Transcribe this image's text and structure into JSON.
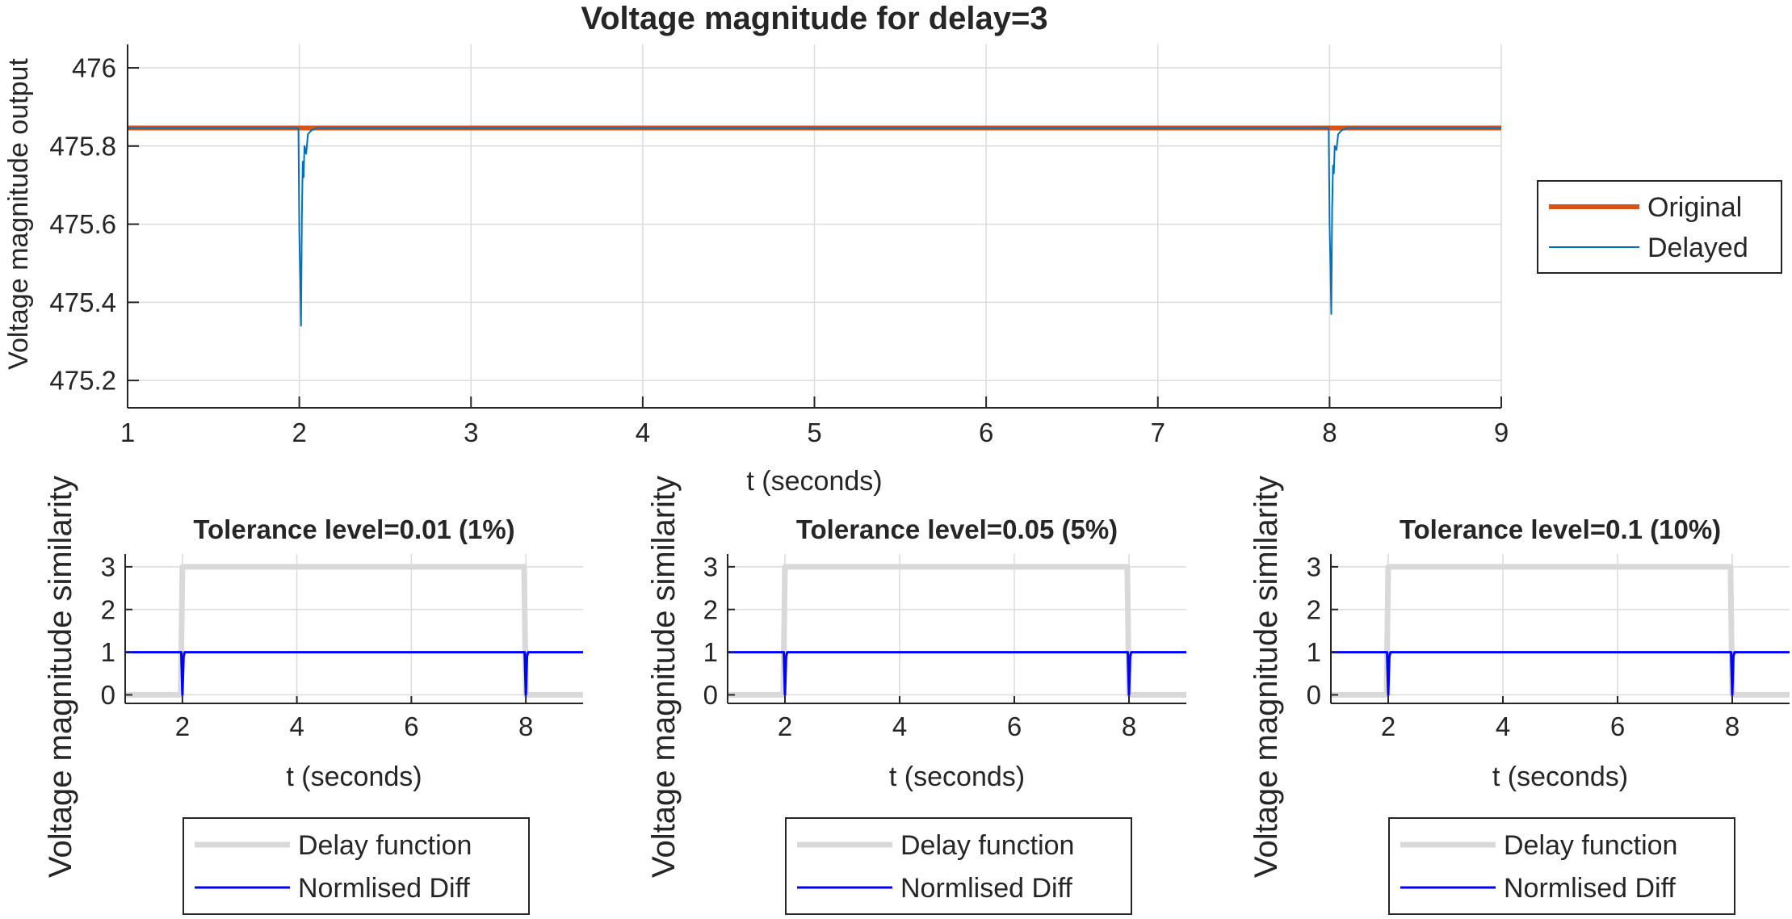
{
  "figure": {
    "colors": {
      "original": "#D95319",
      "delayed": "#0072BD",
      "delay_function": "#D9D9D9",
      "normlised_diff": "#0000FF",
      "grid": "#DCDCDC",
      "axis": "#262626"
    }
  },
  "chart_data": [
    {
      "id": "main",
      "type": "line",
      "title": "Voltage magnitude for delay=3",
      "xlabel": "t (seconds)",
      "ylabel": "Voltage magnitude output",
      "xlim": [
        1,
        9
      ],
      "ylim": [
        475.13,
        476.06
      ],
      "xticks": [
        1,
        2,
        3,
        4,
        5,
        6,
        7,
        8,
        9
      ],
      "yticks": [
        475.2,
        475.4,
        475.6,
        475.8,
        476
      ],
      "ytick_labels": [
        "475.2",
        "475.4",
        "475.6",
        "475.8",
        "476"
      ],
      "grid": true,
      "legend": {
        "placement": "right",
        "entries": [
          "Original",
          "Delayed"
        ]
      },
      "series": [
        {
          "name": "Original",
          "style": "original",
          "x": [
            1,
            2.0,
            2.06,
            8.0,
            8.06,
            9
          ],
          "y": [
            475.846,
            475.846,
            475.846,
            475.846,
            475.846,
            475.846
          ]
        },
        {
          "name": "Delayed",
          "style": "delayed",
          "x": [
            1,
            1.995,
            2.0,
            2.005,
            2.01,
            2.015,
            2.02,
            2.025,
            2.03,
            2.04,
            2.05,
            2.07,
            2.1,
            7.995,
            8.0,
            8.005,
            8.01,
            8.015,
            8.02,
            8.025,
            8.03,
            8.04,
            8.05,
            8.07,
            8.1,
            9
          ],
          "y": [
            475.846,
            475.846,
            475.58,
            475.47,
            475.34,
            475.62,
            475.76,
            475.72,
            475.8,
            475.78,
            475.83,
            475.84,
            475.846,
            475.846,
            475.6,
            475.5,
            475.37,
            475.64,
            475.75,
            475.73,
            475.8,
            475.79,
            475.83,
            475.84,
            475.846,
            475.846
          ]
        }
      ]
    },
    {
      "id": "tol1",
      "type": "line",
      "title": "Tolerance level=0.01 (1%)",
      "xlabel": "t (seconds)",
      "ylabel": "Voltage magnitude similarity",
      "xlim": [
        1,
        9
      ],
      "ylim": [
        -0.2,
        3.3
      ],
      "xticks": [
        2,
        4,
        6,
        8
      ],
      "yticks": [
        0,
        1,
        2,
        3
      ],
      "ytick_labels": [
        "0",
        "1",
        "2",
        "3"
      ],
      "grid": true,
      "legend": {
        "placement": "below",
        "entries": [
          "Delay function",
          "Normlised Diff"
        ]
      },
      "series": [
        {
          "name": "Delay function",
          "style": "delay_function",
          "x": [
            1,
            1.97,
            2.0,
            7.97,
            8.0,
            9
          ],
          "y": [
            0,
            0,
            3,
            3,
            0,
            0
          ]
        },
        {
          "name": "Normlised Diff",
          "style": "normlised_diff",
          "x": [
            1,
            1.98,
            2.0,
            2.02,
            2.04,
            7.98,
            8.0,
            8.02,
            8.04,
            9
          ],
          "y": [
            1,
            1,
            0,
            0.9,
            1,
            1,
            0,
            0.9,
            1,
            1
          ]
        }
      ]
    },
    {
      "id": "tol5",
      "type": "line",
      "title": "Tolerance level=0.05 (5%)",
      "xlabel": "t (seconds)",
      "ylabel": "Voltage magnitude similarity",
      "xlim": [
        1,
        9
      ],
      "ylim": [
        -0.2,
        3.3
      ],
      "xticks": [
        2,
        4,
        6,
        8
      ],
      "yticks": [
        0,
        1,
        2,
        3
      ],
      "ytick_labels": [
        "0",
        "1",
        "2",
        "3"
      ],
      "grid": true,
      "legend": {
        "placement": "below",
        "entries": [
          "Delay function",
          "Normlised Diff"
        ]
      },
      "series": [
        {
          "name": "Delay function",
          "style": "delay_function",
          "x": [
            1,
            1.97,
            2.0,
            7.97,
            8.0,
            9
          ],
          "y": [
            0,
            0,
            3,
            3,
            0,
            0
          ]
        },
        {
          "name": "Normlised Diff",
          "style": "normlised_diff",
          "x": [
            1,
            1.98,
            2.0,
            2.02,
            2.04,
            7.98,
            8.0,
            8.02,
            8.04,
            9
          ],
          "y": [
            1,
            1,
            0,
            0.9,
            1,
            1,
            0,
            0.9,
            1,
            1
          ]
        }
      ]
    },
    {
      "id": "tol10",
      "type": "line",
      "title": "Tolerance level=0.1 (10%)",
      "xlabel": "t (seconds)",
      "ylabel": "Voltage magnitude similarity",
      "xlim": [
        1,
        9
      ],
      "ylim": [
        -0.2,
        3.3
      ],
      "xticks": [
        2,
        4,
        6,
        8
      ],
      "yticks": [
        0,
        1,
        2,
        3
      ],
      "ytick_labels": [
        "0",
        "1",
        "2",
        "3"
      ],
      "grid": true,
      "legend": {
        "placement": "below",
        "entries": [
          "Delay function",
          "Normlised Diff"
        ]
      },
      "series": [
        {
          "name": "Delay function",
          "style": "delay_function",
          "x": [
            1,
            1.97,
            2.0,
            7.97,
            8.0,
            9
          ],
          "y": [
            0,
            0,
            3,
            3,
            0,
            0
          ]
        },
        {
          "name": "Normlised Diff",
          "style": "normlised_diff",
          "x": [
            1,
            1.98,
            2.0,
            2.02,
            2.04,
            7.98,
            8.0,
            8.02,
            8.04,
            9
          ],
          "y": [
            1,
            1,
            0,
            0.9,
            1,
            1,
            0,
            0.9,
            1,
            1
          ]
        }
      ]
    }
  ]
}
